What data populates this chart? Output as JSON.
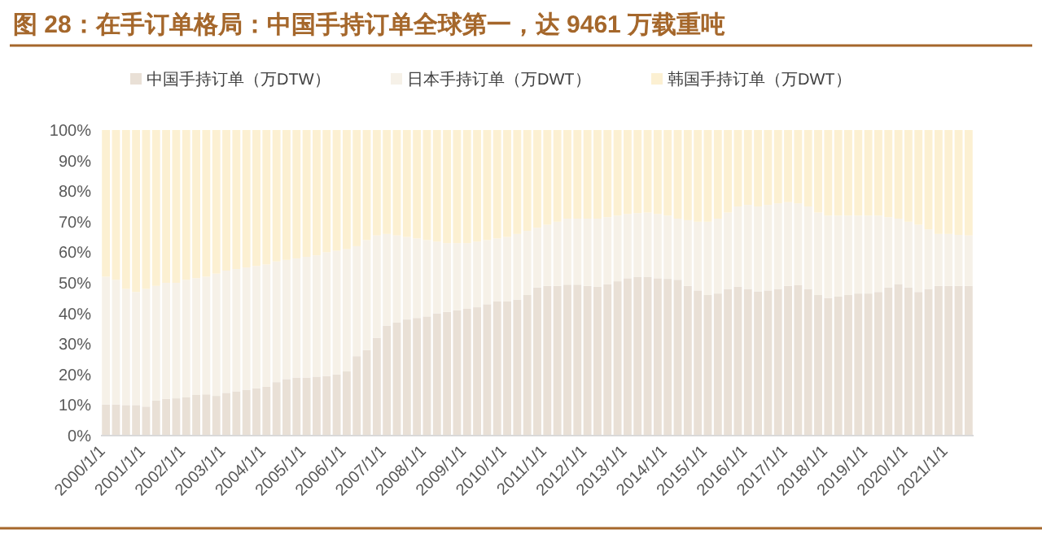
{
  "chart_data": {
    "type": "bar",
    "stacked": true,
    "title": "图 28：在手订单格局：中国手持订单全球第一，达 9461 万载重吨",
    "categories": [
      "2000/1/1",
      null,
      null,
      null,
      "2001/1/1",
      null,
      null,
      null,
      "2002/1/1",
      null,
      null,
      null,
      "2003/1/1",
      null,
      null,
      null,
      "2004/1/1",
      null,
      null,
      null,
      "2005/1/1",
      null,
      null,
      null,
      "2006/1/1",
      null,
      null,
      null,
      "2007/1/1",
      null,
      null,
      null,
      "2008/1/1",
      null,
      null,
      null,
      "2009/1/1",
      null,
      null,
      null,
      "2010/1/1",
      null,
      null,
      null,
      "2011/1/1",
      null,
      null,
      null,
      "2012/1/1",
      null,
      null,
      null,
      "2013/1/1",
      null,
      null,
      null,
      "2014/1/1",
      null,
      null,
      null,
      "2015/1/1",
      null,
      null,
      null,
      "2016/1/1",
      null,
      null,
      null,
      "2017/1/1",
      null,
      null,
      null,
      "2018/1/1",
      null,
      null,
      null,
      "2019/1/1",
      null,
      null,
      null,
      "2020/1/1",
      null,
      null,
      null,
      "2021/1/1",
      null,
      null
    ],
    "series": [
      {
        "name": "中国手持订单（万DTW）",
        "color": "#e9e0d6",
        "values": [
          10.2,
          10.2,
          10,
          10,
          9.5,
          11.5,
          12,
          12.2,
          12.5,
          13.3,
          13.5,
          13,
          14,
          14.5,
          15,
          15.5,
          16,
          17.5,
          18.5,
          19,
          19,
          19.3,
          19.5,
          20,
          21,
          26,
          28,
          32,
          36,
          37,
          38,
          38.5,
          39,
          40,
          40.5,
          41,
          41.5,
          42,
          43,
          44,
          44,
          44.5,
          46,
          48.5,
          49,
          49,
          49.4,
          49.4,
          49,
          48.7,
          49.5,
          50.5,
          51.5,
          52,
          52,
          51.5,
          51.3,
          51,
          49,
          47.5,
          46,
          46.5,
          48,
          48.7,
          48,
          47.2,
          47.5,
          48,
          49,
          49.2,
          48,
          46,
          45,
          45.5,
          46,
          46.5,
          46.5,
          47,
          48.5,
          49.6,
          48.5,
          47,
          48,
          49,
          49,
          49,
          49
        ]
      },
      {
        "name": "日本手持订单（万DWT）",
        "color": "#f6f1e8",
        "values": [
          41.8,
          40.8,
          38,
          37,
          38.5,
          37.5,
          38,
          37.8,
          38.5,
          38.2,
          38.5,
          40,
          40,
          40,
          40,
          40,
          40,
          39.5,
          39,
          39,
          39.5,
          39.7,
          40.5,
          40.5,
          40,
          36,
          36,
          33.5,
          30,
          28.5,
          27,
          26,
          25,
          23.5,
          22.5,
          22,
          21.5,
          21.5,
          21,
          20.5,
          21,
          21.5,
          21,
          19.5,
          20,
          21,
          21.6,
          21.6,
          22,
          22.3,
          22,
          21.5,
          21,
          20.8,
          21,
          21,
          20.7,
          20,
          21.5,
          22.5,
          24,
          24.5,
          25,
          26.3,
          27.5,
          27.8,
          28,
          28,
          27.4,
          26.8,
          27,
          27,
          27,
          26.5,
          26,
          25.5,
          25.5,
          25,
          23,
          21.4,
          21.5,
          22,
          19.5,
          17,
          17,
          16.7,
          16.5
        ]
      },
      {
        "name": "韩国手持订单（万DWT）",
        "color": "#fcf0d2",
        "values": [
          48,
          49,
          52,
          53,
          52,
          51,
          50,
          50,
          49,
          48.5,
          48,
          47,
          46,
          45.5,
          45,
          44.5,
          44,
          43,
          42.5,
          42,
          41.5,
          41,
          40,
          39.5,
          39,
          38,
          36,
          34.5,
          34,
          34.5,
          35,
          35.5,
          36,
          36.5,
          37,
          37,
          37,
          36.5,
          36,
          35.5,
          35,
          34,
          33,
          32,
          31,
          30,
          29,
          29,
          29,
          29,
          28.5,
          28,
          27.5,
          27.2,
          27,
          27.5,
          28,
          29,
          29.5,
          30,
          30,
          29,
          27,
          25,
          24.5,
          25,
          24.5,
          24,
          23.6,
          24,
          25,
          27,
          28,
          28,
          28,
          28,
          28,
          28,
          28.5,
          29,
          30,
          31,
          32.5,
          34,
          34,
          34.3,
          34.5
        ]
      }
    ],
    "ylim": [
      0,
      100
    ],
    "yticks": [
      {
        "value": 0,
        "label": "0%"
      },
      {
        "value": 10,
        "label": "10%"
      },
      {
        "value": 20,
        "label": "20%"
      },
      {
        "value": 30,
        "label": "30%"
      },
      {
        "value": 40,
        "label": "40%"
      },
      {
        "value": 50,
        "label": "50%"
      },
      {
        "value": 60,
        "label": "60%"
      },
      {
        "value": 70,
        "label": "70%"
      },
      {
        "value": 80,
        "label": "80%"
      },
      {
        "value": 90,
        "label": "90%"
      },
      {
        "value": 100,
        "label": "100%"
      }
    ],
    "legend": "top"
  }
}
